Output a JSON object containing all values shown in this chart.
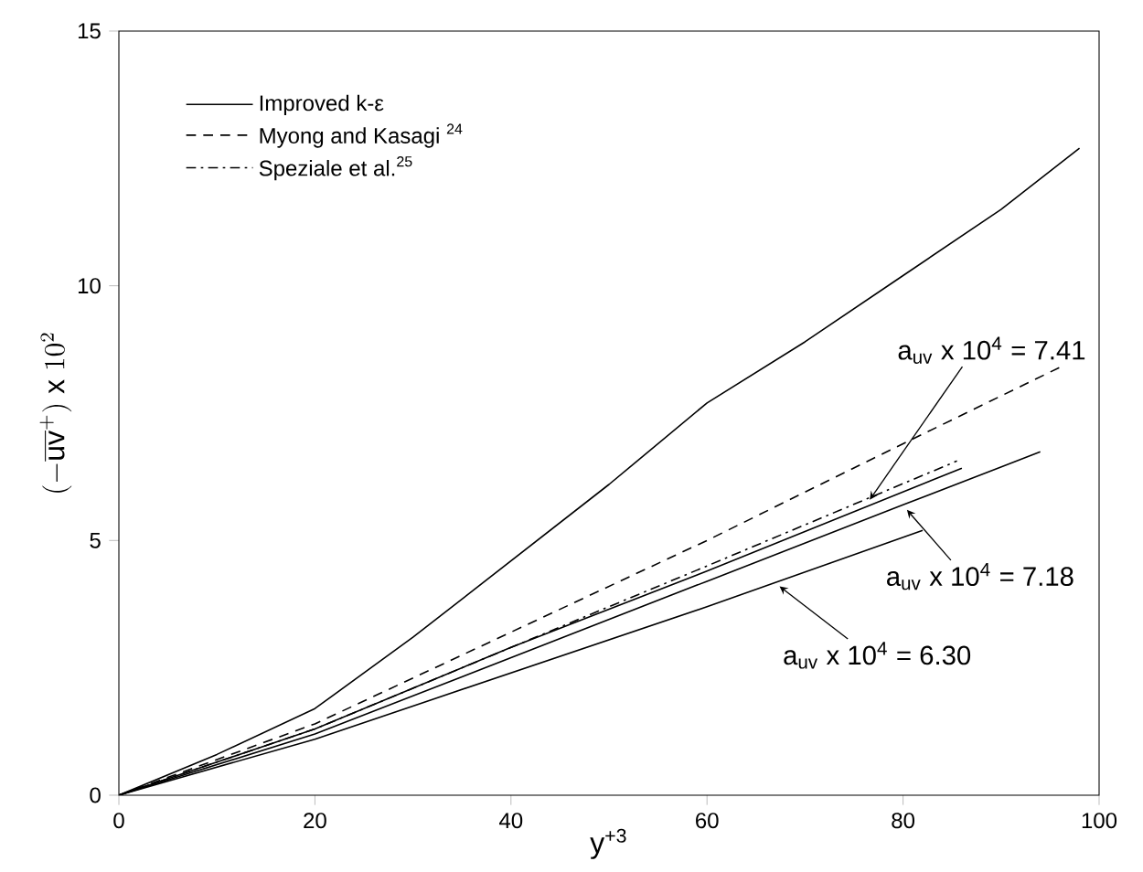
{
  "chart_data": {
    "type": "line",
    "xlabel": "y$^{+3}$",
    "ylabel": "(-\\overline{\\mathrm{uv}}^{+})\\ \\mathrm{x}\\ 10^{2}",
    "xlim": [
      0,
      100
    ],
    "ylim": [
      0,
      15
    ],
    "xticks": [
      0,
      20,
      40,
      60,
      80,
      100
    ],
    "yticks": [
      0,
      5,
      10,
      15
    ],
    "grid": false,
    "legend": "top left",
    "marker": "none",
    "series": [
      {
        "name": "Improved k-ε",
        "color": "#000000",
        "line_style": "solid",
        "x": [
          0,
          10,
          20,
          30,
          40,
          50,
          60,
          70,
          80,
          90,
          98
        ],
        "values": [
          0,
          0.8,
          1.7,
          3.1,
          4.6,
          6.1,
          7.7,
          8.9,
          10.2,
          11.5,
          12.7
        ]
      },
      {
        "name": "Myong and Kasagi $^{24}$",
        "color": "#000000",
        "line_style": "dashed",
        "x": [
          0,
          20,
          40,
          60,
          80,
          96
        ],
        "values": [
          0,
          1.4,
          3.2,
          5.0,
          6.9,
          8.4
        ]
      },
      {
        "name": "Speziale et al.$^{25}$",
        "color": "#000000",
        "line_style": "dashdot",
        "x": [
          0,
          20,
          40,
          60,
          85.5
        ],
        "values": [
          0,
          1.3,
          2.9,
          4.5,
          6.56
        ]
      },
      {
        "color": "#000000",
        "line_style": "solid",
        "x": [
          0,
          20,
          40,
          60,
          86
        ],
        "values": [
          0,
          1.3,
          2.9,
          4.4,
          6.42
        ]
      },
      {
        "color": "#000000",
        "line_style": "solid",
        "x": [
          0,
          20,
          40,
          60,
          80,
          94
        ],
        "values": [
          0,
          1.2,
          2.7,
          4.2,
          5.7,
          6.74
        ]
      },
      {
        "color": "#000000",
        "line_style": "solid",
        "x": [
          0,
          20,
          40,
          60,
          82
        ],
        "values": [
          0,
          1.1,
          2.4,
          3.7,
          5.2
        ]
      }
    ],
    "annotations": [
      {
        "text": "a$_{uv}$ x 10$^{4}$ = 7.41",
        "x": 76.6,
        "y": 5.8
      },
      {
        "text": "a$_{uv}$ x 10$^{4}$ = 7.18",
        "x": 80.4,
        "y": 5.6
      },
      {
        "text": "a$_{uv}$ x 10$^{4}$ = 6.30",
        "x": 67.4,
        "y": 4.1
      }
    ]
  }
}
